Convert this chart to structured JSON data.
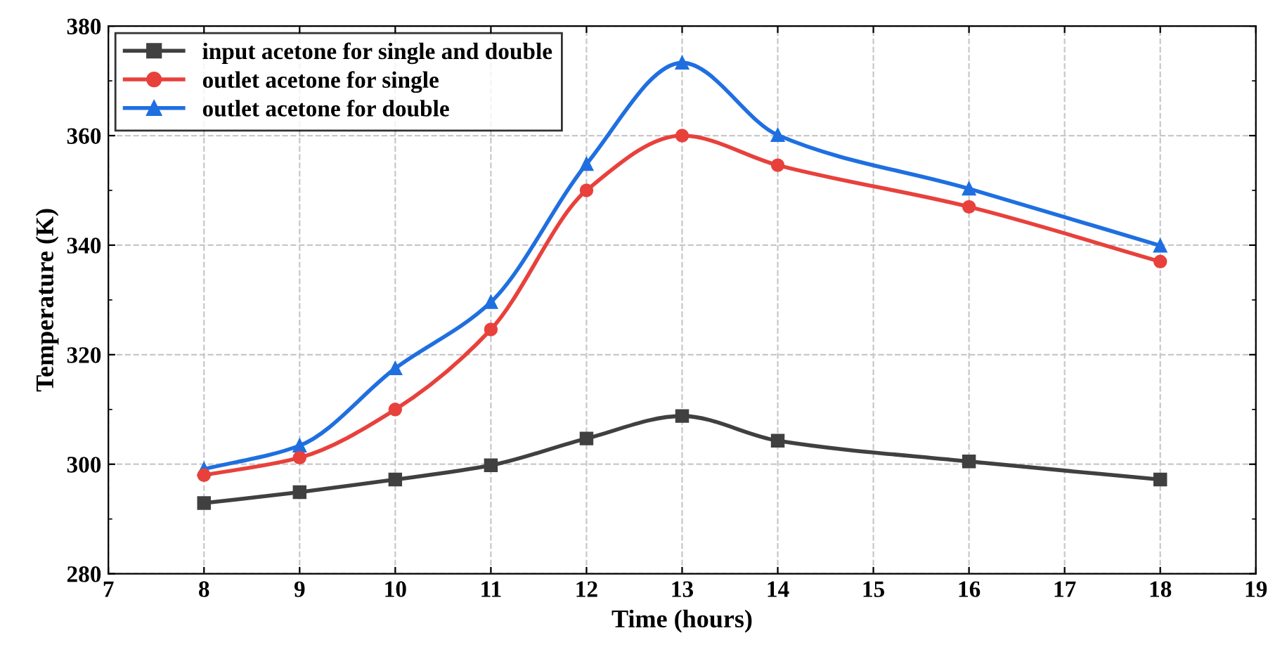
{
  "chart_data": {
    "type": "line",
    "xlabel": "Time (hours)",
    "ylabel": "Temperature (K)",
    "x": [
      8,
      9,
      10,
      11,
      12,
      13,
      14,
      16,
      18
    ],
    "series": [
      {
        "name": "input acetone for single and double",
        "color": "#404040",
        "marker": "square",
        "values": [
          292.9,
          294.9,
          297.2,
          299.8,
          304.7,
          308.8,
          304.3,
          300.5,
          297.2
        ]
      },
      {
        "name": "outlet acetone for single",
        "color": "#e8413c",
        "marker": "circle",
        "values": [
          298.0,
          301.2,
          310.0,
          324.6,
          350.0,
          360.0,
          354.6,
          347.0,
          337.0
        ]
      },
      {
        "name": "outlet acetone for double",
        "color": "#1f6fe0",
        "marker": "triangle",
        "values": [
          299.1,
          303.4,
          317.5,
          329.6,
          354.8,
          373.3,
          360.1,
          350.3,
          339.9
        ]
      }
    ],
    "xlim": [
      7,
      19
    ],
    "xticks": [
      7,
      8,
      9,
      10,
      11,
      12,
      13,
      14,
      15,
      16,
      17,
      18,
      19
    ],
    "ylim": [
      280,
      380
    ],
    "yticks": [
      280,
      300,
      320,
      340,
      360,
      380
    ],
    "grid": true,
    "legend": "top left",
    "line_style": "solid"
  }
}
